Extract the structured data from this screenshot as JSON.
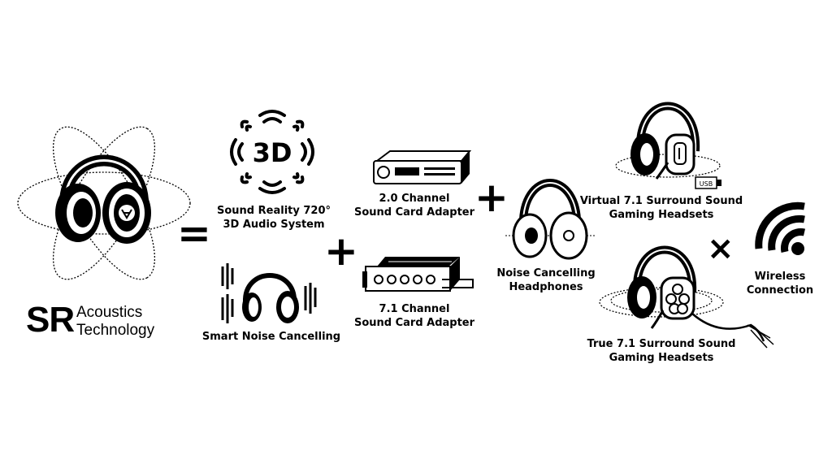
{
  "logo": {
    "abbrev": "SR",
    "line1": "Acoustics",
    "line2": "Technology"
  },
  "operators": {
    "equals": "=",
    "plus": "+",
    "times": "×"
  },
  "icons": {
    "badge_3d": "3D",
    "usb": "USB"
  },
  "features": {
    "sound_reality": [
      "Sound Reality 720°",
      "3D Audio System"
    ],
    "smart_noise": [
      "Smart Noise Cancelling"
    ],
    "card_20": [
      "2.0 Channel",
      "Sound Card Adapter"
    ],
    "card_71": [
      "7.1 Channel",
      "Sound Card Adapter"
    ],
    "nc_headphones": [
      "Noise Cancelling",
      "Headphones"
    ],
    "virtual_71": [
      "Virtual 7.1 Surround Sound",
      "Gaming Headsets"
    ],
    "true_71": [
      "True 7.1 Surround Sound",
      "Gaming Headsets"
    ],
    "wireless": [
      "Wireless",
      "Connection"
    ]
  }
}
